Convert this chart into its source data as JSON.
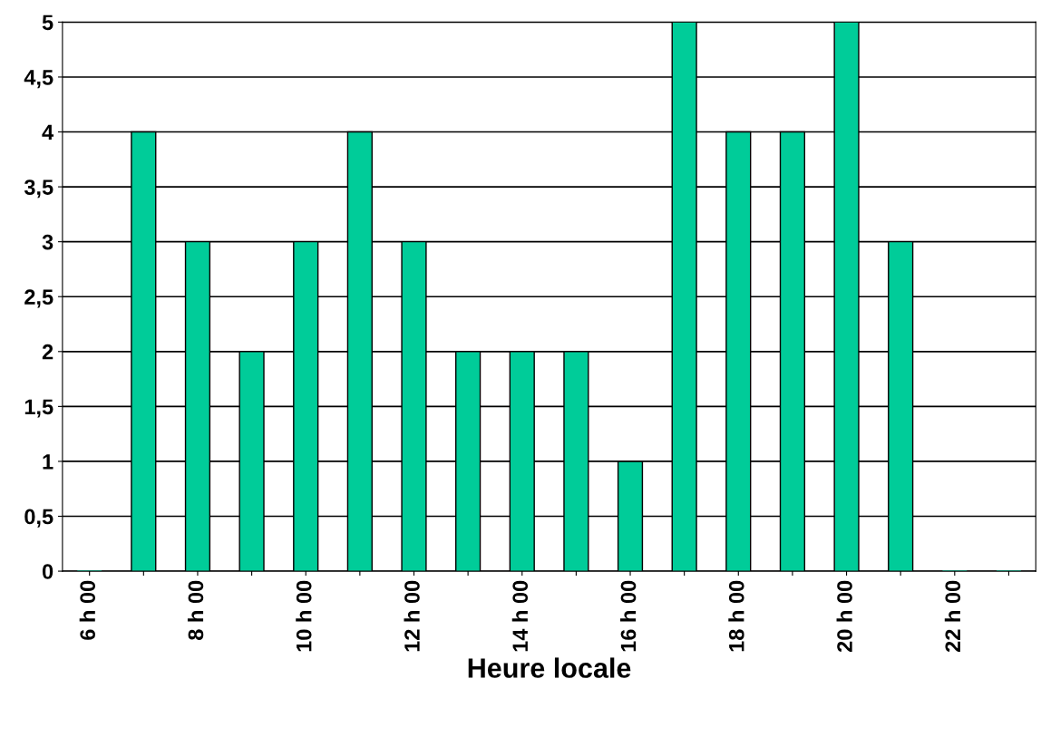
{
  "chart_data": {
    "type": "bar",
    "xlabel": "Heure locale",
    "categories": [
      "6 h 00",
      null,
      "8 h 00",
      null,
      "10 h 00",
      null,
      "12 h 00",
      null,
      "14 h 00",
      null,
      "16 h 00",
      null,
      "18 h 00",
      null,
      "20 h 00",
      null,
      "22 h 00",
      null
    ],
    "values": [
      0,
      4,
      3,
      2,
      3,
      4,
      3,
      2,
      2,
      2,
      1,
      5,
      4,
      4,
      5,
      3,
      0,
      0
    ],
    "color": "#00cc99",
    "ylim": [
      0,
      5
    ],
    "yticks": [
      0,
      {
        "value": 0.5,
        "label": "0,5"
      },
      1,
      {
        "value": 1.5,
        "label": "1,5"
      },
      2,
      {
        "value": 2.5,
        "label": "2,5"
      },
      3,
      {
        "value": 3.5,
        "label": "3,5"
      },
      4,
      {
        "value": 4.5,
        "label": "4,5"
      },
      5
    ],
    "grid": "y",
    "legend": false
  }
}
